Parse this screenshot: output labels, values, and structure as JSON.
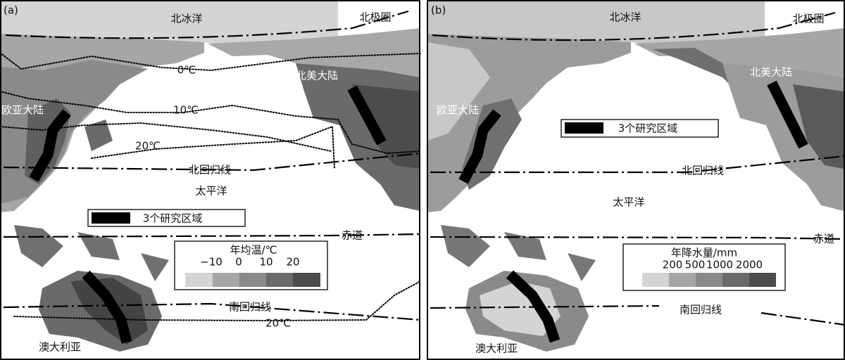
{
  "panels": [
    {
      "label": "(a)",
      "arctic_ocean": "北冰洋",
      "arctic_circle": "北极圈",
      "north_america": "北美大陆",
      "eurasia": "欧亚大陆",
      "pacific": "太平洋",
      "tropic_cancer": "北回归线",
      "equator": "赤道",
      "tropic_capricorn": "南回归线",
      "australia": "澳大利亚",
      "study_regions": "3个研究区域",
      "isotherms": [
        "0℃",
        "10℃",
        "20℃",
        "20℃"
      ],
      "legend": {
        "title": "年均温/℃",
        "ticks": [
          "−10",
          "0",
          "10",
          "20"
        ]
      }
    },
    {
      "label": "(b)",
      "arctic_ocean": "北冰洋",
      "arctic_circle": "北极圈",
      "north_america": "北美大陆",
      "eurasia": "欧亚大陆",
      "pacific": "太平洋",
      "tropic_cancer": "北回归线",
      "equator": "赤道",
      "tropic_capricorn": "南回归线",
      "australia": "澳大利亚",
      "study_regions": "3个研究区域",
      "legend": {
        "title": "年降水量/mm",
        "ticks": [
          "200",
          "500",
          "1000",
          "2000"
        ]
      }
    }
  ]
}
